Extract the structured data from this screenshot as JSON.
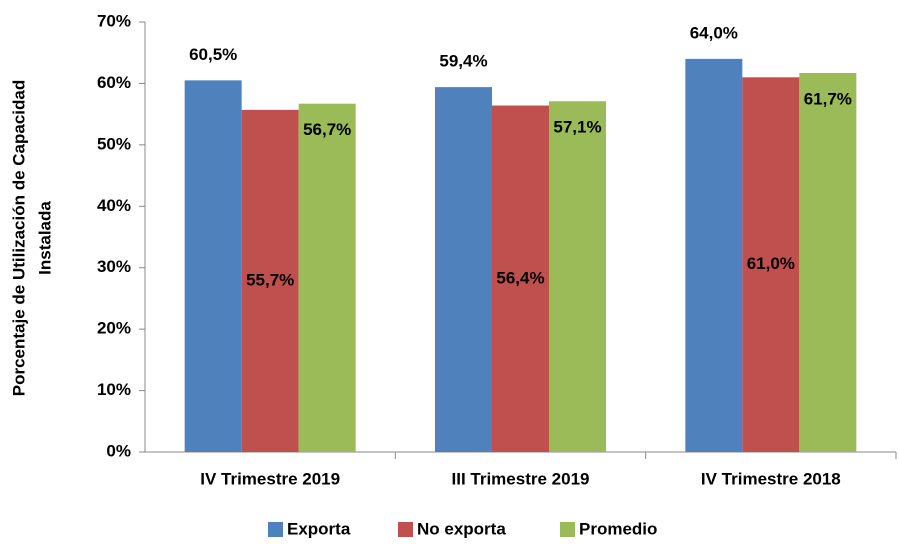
{
  "chart_data": {
    "type": "bar",
    "ylabel": [
      "Porcentaje de Utilización de Capacidad",
      "Instalada"
    ],
    "categories": [
      "IV Trimestre 2019",
      "III Trimestre 2019",
      "IV Trimestre 2018"
    ],
    "series": [
      {
        "name": "Exporta",
        "color": "#4f81bd",
        "values": [
          60.5,
          59.4,
          64.0
        ],
        "value_labels": [
          "60,5%",
          "59,4%",
          "64,0%"
        ]
      },
      {
        "name": "No exporta",
        "color": "#c0504d",
        "values": [
          55.7,
          56.4,
          61.0
        ],
        "value_labels": [
          "55,7%",
          "56,4%",
          "61,0%"
        ]
      },
      {
        "name": "Promedio",
        "color": "#9bbb59",
        "values": [
          56.7,
          57.1,
          61.7
        ],
        "value_labels": [
          "56,7%",
          "57,1%",
          "61,7%"
        ]
      }
    ],
    "ylim": [
      0,
      70
    ],
    "yticks": [
      {
        "value": 0,
        "label": "0%"
      },
      {
        "value": 10,
        "label": "10%"
      },
      {
        "value": 20,
        "label": "20%"
      },
      {
        "value": 30,
        "label": "30%"
      },
      {
        "value": 40,
        "label": "40%"
      },
      {
        "value": 50,
        "label": "50%"
      },
      {
        "value": 60,
        "label": "60%"
      },
      {
        "value": 70,
        "label": "70%"
      }
    ],
    "grid": false,
    "legend": "bottom"
  }
}
